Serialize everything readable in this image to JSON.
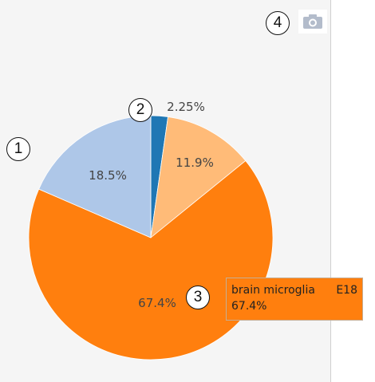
{
  "chart_data": {
    "type": "pie",
    "sort": "clockwise-from-top",
    "slices": [
      {
        "label": "",
        "value": 2.25,
        "text": "2.25%",
        "color": "#1f77b4"
      },
      {
        "label": "",
        "value": 11.9,
        "text": "11.9%",
        "color": "#ffbb78"
      },
      {
        "label": "brain microglia   E18",
        "value": 67.4,
        "text": "67.4%",
        "color": "#ff7f0e"
      },
      {
        "label": "",
        "value": 18.5,
        "text": "18.5%",
        "color": "#aec7e8"
      }
    ],
    "hover": {
      "name": "brain microglia",
      "tag": "E18",
      "value_text": "67.4%"
    }
  },
  "toolbar": {
    "camera_icon": "camera-icon"
  },
  "callouts": [
    "1",
    "2",
    "3",
    "4"
  ]
}
